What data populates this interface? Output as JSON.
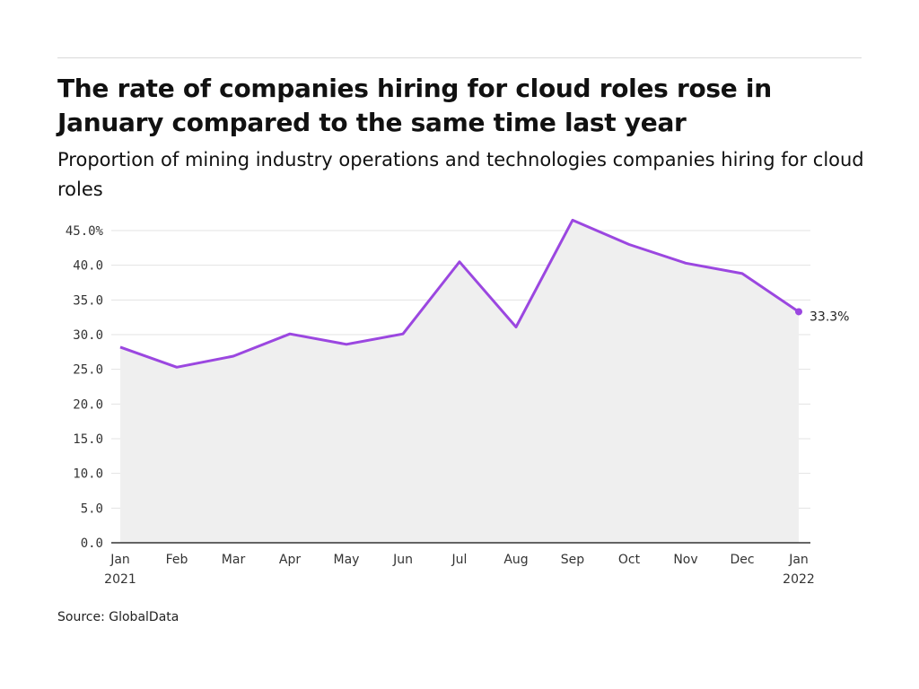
{
  "title": "The rate of companies hiring for cloud roles rose in January compared to the same time last year",
  "subtitle": "Proportion of mining industry operations and technologies companies hiring for cloud roles",
  "source": "Source: GlobalData",
  "colors": {
    "line": "#9b47e0",
    "area": "#efefef",
    "grid": "#e3e3e3",
    "axis": "#333333"
  },
  "chart_data": {
    "type": "area",
    "categories": [
      "Jan 2021",
      "Feb",
      "Mar",
      "Apr",
      "May",
      "Jun",
      "Jul",
      "Aug",
      "Sep",
      "Oct",
      "Nov",
      "Dec",
      "Jan 2022"
    ],
    "x_tick_labels": [
      [
        "Jan",
        "2021"
      ],
      [
        "Feb"
      ],
      [
        "Mar"
      ],
      [
        "Apr"
      ],
      [
        "May"
      ],
      [
        "Jun"
      ],
      [
        "Jul"
      ],
      [
        "Aug"
      ],
      [
        "Sep"
      ],
      [
        "Oct"
      ],
      [
        "Nov"
      ],
      [
        "Dec"
      ],
      [
        "Jan",
        "2022"
      ]
    ],
    "values": [
      28.2,
      25.3,
      26.9,
      30.1,
      28.6,
      30.1,
      40.5,
      31.1,
      46.5,
      43.0,
      40.3,
      38.8,
      33.3
    ],
    "ylim": [
      0,
      45
    ],
    "y_ticks": [
      "0.0",
      "5.0",
      "10.0",
      "15.0",
      "20.0",
      "25.0",
      "30.0",
      "35.0",
      "40.0",
      "45.0%"
    ],
    "y_tick_values": [
      0,
      5,
      10,
      15,
      20,
      25,
      30,
      35,
      40,
      45
    ],
    "end_label": "33.3%",
    "grid": true,
    "xlabel": "",
    "ylabel": ""
  }
}
